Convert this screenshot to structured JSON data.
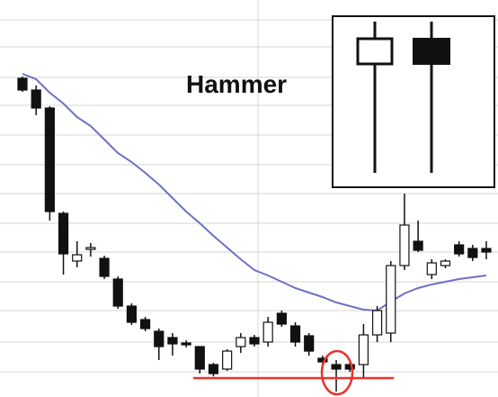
{
  "chart_data": {
    "type": "candlestick",
    "annotation": "Hammer",
    "ylim": [
      0,
      440
    ],
    "open": [
      353,
      340,
      320,
      203,
      150,
      163,
      153,
      130,
      100,
      85,
      72,
      65,
      59,
      55,
      35,
      30,
      55,
      65,
      60,
      92,
      78,
      67,
      42,
      35,
      35,
      35,
      68,
      70,
      145,
      172,
      135,
      145,
      168,
      164,
      164
    ],
    "high": [
      355,
      345,
      322,
      205,
      172,
      170,
      156,
      133,
      103,
      88,
      75,
      70,
      62,
      55,
      37,
      52,
      70,
      68,
      88,
      95,
      82,
      70,
      45,
      40,
      38,
      80,
      100,
      150,
      225,
      195,
      152,
      152,
      172,
      168,
      172
    ],
    "low": [
      338,
      312,
      195,
      135,
      143,
      155,
      130,
      97,
      79,
      72,
      40,
      45,
      54,
      25,
      22,
      28,
      48,
      55,
      55,
      77,
      55,
      45,
      30,
      5,
      27,
      20,
      60,
      60,
      140,
      160,
      130,
      142,
      155,
      150,
      152
    ],
    "close": [
      340,
      320,
      205,
      158,
      157,
      165,
      133,
      100,
      82,
      75,
      55,
      58,
      57,
      30,
      25,
      50,
      65,
      58,
      82,
      80,
      60,
      50,
      38,
      30,
      30,
      68,
      95,
      145,
      190,
      162,
      148,
      150,
      158,
      154,
      160
    ],
    "series": [
      {
        "color": "#6f70c6",
        "values": [
          358,
          352,
          337,
          325,
          310,
          300,
          285,
          270,
          260,
          248,
          235,
          220,
          205,
          192,
          178,
          165,
          152,
          140,
          134,
          127,
          120,
          115,
          110,
          104,
          100,
          96,
          95,
          105,
          114,
          120,
          124,
          127,
          130,
          132,
          134
        ]
      }
    ]
  }
}
